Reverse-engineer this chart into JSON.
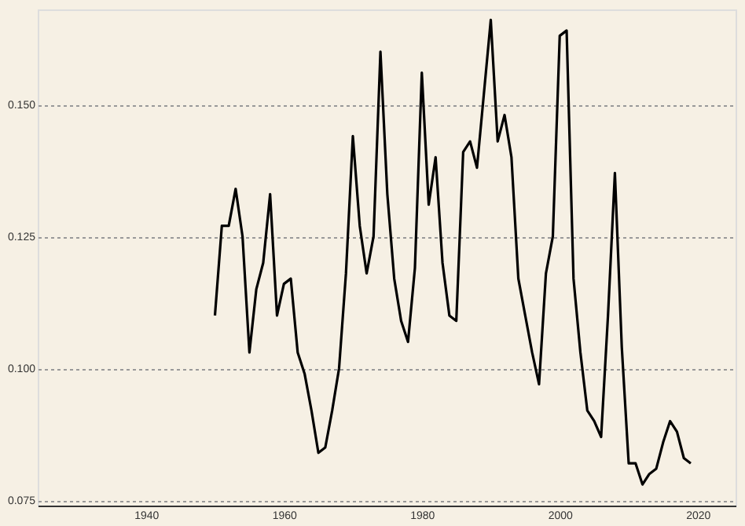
{
  "chart_data": {
    "type": "line",
    "x": [
      1950,
      1951,
      1952,
      1953,
      1954,
      1955,
      1956,
      1957,
      1958,
      1959,
      1960,
      1961,
      1962,
      1963,
      1964,
      1965,
      1966,
      1967,
      1968,
      1969,
      1970,
      1971,
      1972,
      1973,
      1974,
      1975,
      1976,
      1977,
      1978,
      1979,
      1980,
      1981,
      1982,
      1983,
      1984,
      1985,
      1986,
      1987,
      1988,
      1989,
      1990,
      1991,
      1992,
      1993,
      1994,
      1995,
      1996,
      1997,
      1998,
      1999,
      2000,
      2001,
      2002,
      2003,
      2004,
      2005,
      2006,
      2007,
      2008,
      2009,
      2010,
      2011,
      2012,
      2013,
      2014,
      2015,
      2016,
      2017,
      2018,
      2019
    ],
    "series": [
      {
        "color": "#000000",
        "values": [
          0.11,
          0.127,
          0.127,
          0.134,
          0.125,
          0.103,
          0.115,
          0.12,
          0.133,
          0.11,
          0.116,
          0.117,
          0.103,
          0.099,
          0.092,
          0.084,
          0.085,
          0.092,
          0.1,
          0.118,
          0.144,
          0.127,
          0.118,
          0.125,
          0.16,
          0.133,
          0.117,
          0.109,
          0.105,
          0.119,
          0.156,
          0.131,
          0.14,
          0.12,
          0.11,
          0.109,
          0.141,
          0.143,
          0.138,
          0.152,
          0.166,
          0.143,
          0.148,
          0.14,
          0.117,
          0.11,
          0.103,
          0.097,
          0.118,
          0.125,
          0.163,
          0.164,
          0.117,
          0.103,
          0.092,
          0.09,
          0.087,
          0.11,
          0.137,
          0.104,
          0.082,
          0.082,
          0.078,
          0.08,
          0.081,
          0.086,
          0.09,
          0.088,
          0.083,
          0.082
        ]
      }
    ],
    "xlim": [
      1924.3,
      2025.5
    ],
    "xticks": [
      1940,
      1960,
      1980,
      2000,
      2020
    ],
    "ylim": [
      0.074,
      0.168
    ],
    "yticks": [
      {
        "value": 0.075,
        "label": "0.075"
      },
      {
        "value": 0.1,
        "label": "0.100"
      },
      {
        "value": 0.125,
        "label": "0.125"
      },
      {
        "value": 0.15,
        "label": "0.150"
      }
    ],
    "grid": "y",
    "marker": "none",
    "line_style": "solid"
  }
}
